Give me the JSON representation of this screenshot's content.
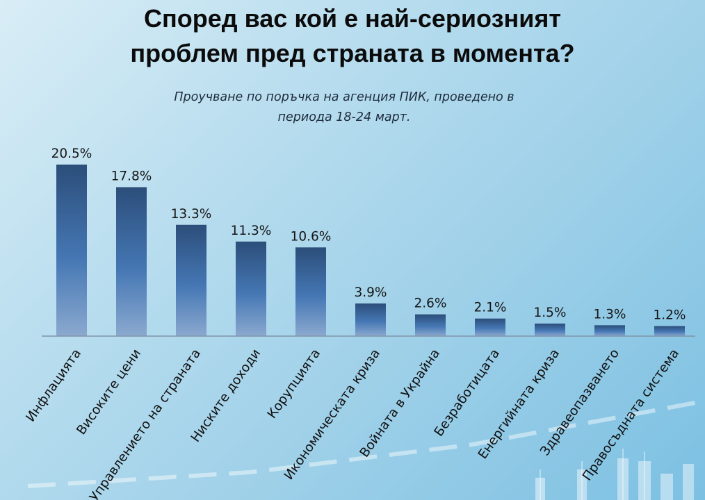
{
  "header": {
    "title_line1": "Според вас кой е най-сериозният",
    "title_line2": "проблем пред страната в момента?",
    "subtitle_line1": "Проучване по поръчка на агенция ПИК, проведено в",
    "subtitle_line2": "периода 18-24 март."
  },
  "colors": {
    "bar_top": "#2c4e7a",
    "bar_mid": "#4577b4",
    "bar_bottom": "#8ba9cf",
    "axis": "#8094a8"
  },
  "chart_data": {
    "type": "bar",
    "categories": [
      "Инфлацията",
      "Високите цени",
      "Управлението на страната",
      "Ниските доходи",
      "Корупцията",
      "Икономическата криза",
      "Войната в Украйна",
      "Безработицата",
      "Енергийната криза",
      "Здравеопазването",
      "Правосъдната система"
    ],
    "values": [
      20.5,
      17.8,
      13.3,
      11.3,
      10.6,
      3.9,
      2.6,
      2.1,
      1.5,
      1.3,
      1.2
    ],
    "value_labels": [
      "20.5%",
      "17.8%",
      "13.3%",
      "11.3%",
      "10.6%",
      "3.9%",
      "2.6%",
      "2.1%",
      "1.5%",
      "1.3%",
      "1.2%"
    ],
    "title": "Според вас кой е най-сериозният проблем пред страната в момента?",
    "subtitle": "Проучване по поръчка на агенция ПИК, проведено в периода 18-24 март.",
    "xlabel": "",
    "ylabel": "",
    "ylim": [
      0,
      20.5
    ],
    "grid": false,
    "legend": "none"
  }
}
